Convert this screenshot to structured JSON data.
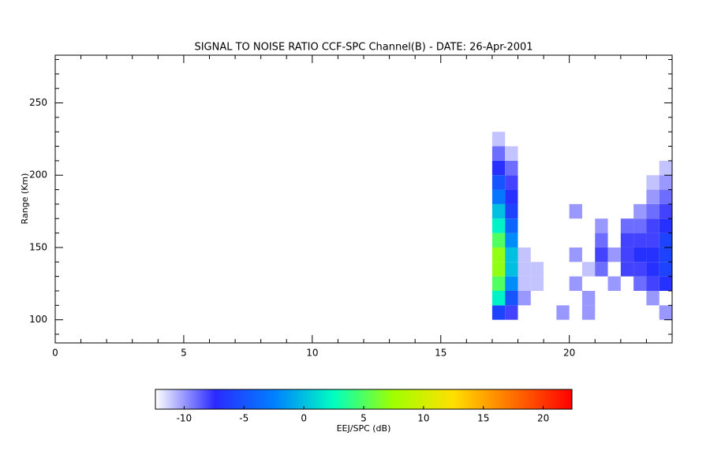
{
  "chart_data": {
    "type": "heatmap",
    "title": "SIGNAL TO NOISE RATIO CCF-SPC Channel(B) - DATE: 26-Apr-2001",
    "ylabel": "Range (Km)",
    "xlim": [
      0,
      24
    ],
    "ylim": [
      84,
      283
    ],
    "xticks": [
      0,
      5,
      10,
      15,
      20
    ],
    "yticks": [
      100,
      150,
      200,
      250
    ],
    "xminorticks": [
      1,
      2,
      3,
      4,
      6,
      7,
      8,
      9,
      11,
      12,
      13,
      14,
      16,
      17,
      18,
      19,
      21,
      22,
      23
    ],
    "yminorticks": [
      90,
      110,
      120,
      130,
      140,
      160,
      170,
      180,
      190,
      210,
      220,
      230,
      240,
      260,
      270,
      280
    ],
    "x": [
      17,
      17.5,
      18,
      18.5,
      19,
      19.5,
      20,
      20.5,
      21,
      21.5,
      22,
      22.5,
      23,
      23.5,
      24
    ],
    "y": [
      100,
      110,
      120,
      130,
      140,
      150,
      160,
      170,
      180,
      190,
      200,
      210,
      220,
      230
    ],
    "z": [
      [
        -6,
        -8,
        null,
        null,
        null,
        -10,
        null,
        -10,
        null,
        null,
        null,
        null,
        null,
        -10
      ],
      [
        2,
        -5,
        -10,
        null,
        null,
        null,
        null,
        -10,
        null,
        null,
        null,
        null,
        -10,
        null
      ],
      [
        5,
        -2,
        -11,
        -11,
        null,
        null,
        -10,
        null,
        null,
        -10,
        null,
        -9,
        -8,
        -7
      ],
      [
        7,
        0,
        -11,
        -11,
        null,
        null,
        null,
        -11,
        -9,
        null,
        -8,
        -8,
        -7,
        -6
      ],
      [
        7,
        0,
        -11,
        null,
        null,
        null,
        -10,
        null,
        -8,
        -10,
        -8,
        -7,
        -7,
        -6
      ],
      [
        5,
        -2,
        null,
        null,
        null,
        null,
        null,
        null,
        -9,
        null,
        -8,
        -8,
        -8,
        -6
      ],
      [
        2,
        -4,
        null,
        null,
        null,
        null,
        null,
        null,
        -10,
        null,
        -9,
        -9,
        -8,
        -7
      ],
      [
        0,
        -6,
        null,
        null,
        null,
        null,
        -10,
        null,
        null,
        null,
        null,
        -10,
        -9,
        -8
      ],
      [
        -3,
        -7,
        null,
        null,
        null,
        null,
        null,
        null,
        null,
        null,
        null,
        null,
        -10,
        -9
      ],
      [
        -5,
        -8,
        null,
        null,
        null,
        null,
        null,
        null,
        null,
        null,
        null,
        null,
        -11,
        -10
      ],
      [
        -7,
        -9,
        null,
        null,
        null,
        null,
        null,
        null,
        null,
        null,
        null,
        null,
        null,
        -11
      ],
      [
        -9,
        -11,
        null,
        null,
        null,
        null,
        null,
        null,
        null,
        null,
        null,
        null,
        null,
        null
      ],
      [
        -11,
        null,
        null,
        null,
        null,
        null,
        null,
        null,
        null,
        null,
        null,
        null,
        null,
        null
      ]
    ],
    "colorbar_label": "EEJ/SPC (dB)",
    "clim": [
      -12.4,
      22.4
    ],
    "cticks": [
      -10,
      -5,
      0,
      5,
      10,
      15,
      20
    ],
    "colormap": [
      "#ffffff",
      "#2a2aff",
      "#0080ff",
      "#00ffc0",
      "#a0ff00",
      "#ffe000",
      "#ff7000",
      "#ff0000"
    ]
  }
}
